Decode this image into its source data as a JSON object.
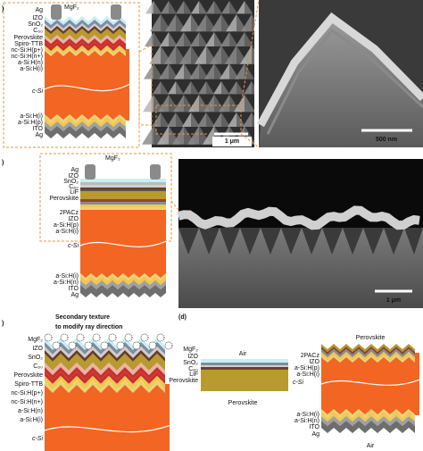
{
  "panel_a": {
    "label": ")",
    "ag_top": "Ag",
    "mgf2": "MgF₂",
    "layers_top": [
      "IZO",
      "SnO₂",
      "C₆₀",
      "Perovskite",
      "Spiro-TTB",
      "nc-Si:H(p+)",
      "nc-Si:H(n+)",
      "a-Si:H(n)",
      "a-Si:H(i)"
    ],
    "bulk": "c-Si",
    "layers_bottom": [
      "a-Si:H(i)",
      "a-Si:H(p)",
      "ITO",
      "Ag"
    ],
    "scale_bars": [
      "1 μm",
      "500 nm"
    ]
  },
  "panel_b": {
    "label": ")",
    "mgf2": "MgF₂",
    "layers_top": [
      "Ag",
      "IZO",
      "SnO₂",
      "C₆₀",
      "LiF",
      "Perovskite"
    ],
    "layers_mid": [
      "2PACz",
      "IZO",
      "a-Si:H(p)",
      "a-Si:H(i)"
    ],
    "bulk": "c-Si",
    "layers_bottom": [
      "a-Si:H(i)",
      "a-Si:H(n)",
      "ITO",
      "Ag"
    ],
    "scale_bar": "1 μm"
  },
  "panel_c": {
    "label": ")",
    "note": [
      "Secondary texture",
      "to modify ray direction"
    ],
    "layers": [
      "MgF₂",
      "IZO",
      "SnO₂",
      "C₆₀",
      "Perovskite",
      "Spiro-TTB",
      "nc-Si:H(p+)",
      "nc-Si:H(n+)",
      "a-Si:H(n)",
      "a-Si:H(i)"
    ],
    "bulk": "c-Si"
  },
  "panel_d": {
    "label": "(d)",
    "left": {
      "top": "Air",
      "layers": [
        "MgF₂",
        "IZO",
        "SnO₂",
        "C₆₀",
        "LiF",
        "Perovskite"
      ],
      "bottom": "Perovskite"
    },
    "right": {
      "top": "Perovskite",
      "layers": [
        "2PACz",
        "IZO",
        "a-Si:H(p)",
        "a-Si:H(i)"
      ],
      "bulk": "c-Si",
      "layers_bottom": [
        "a-Si:H(i)",
        "a-Si:H(n)",
        "ITO",
        "Ag"
      ],
      "bottom": "Air"
    }
  }
}
